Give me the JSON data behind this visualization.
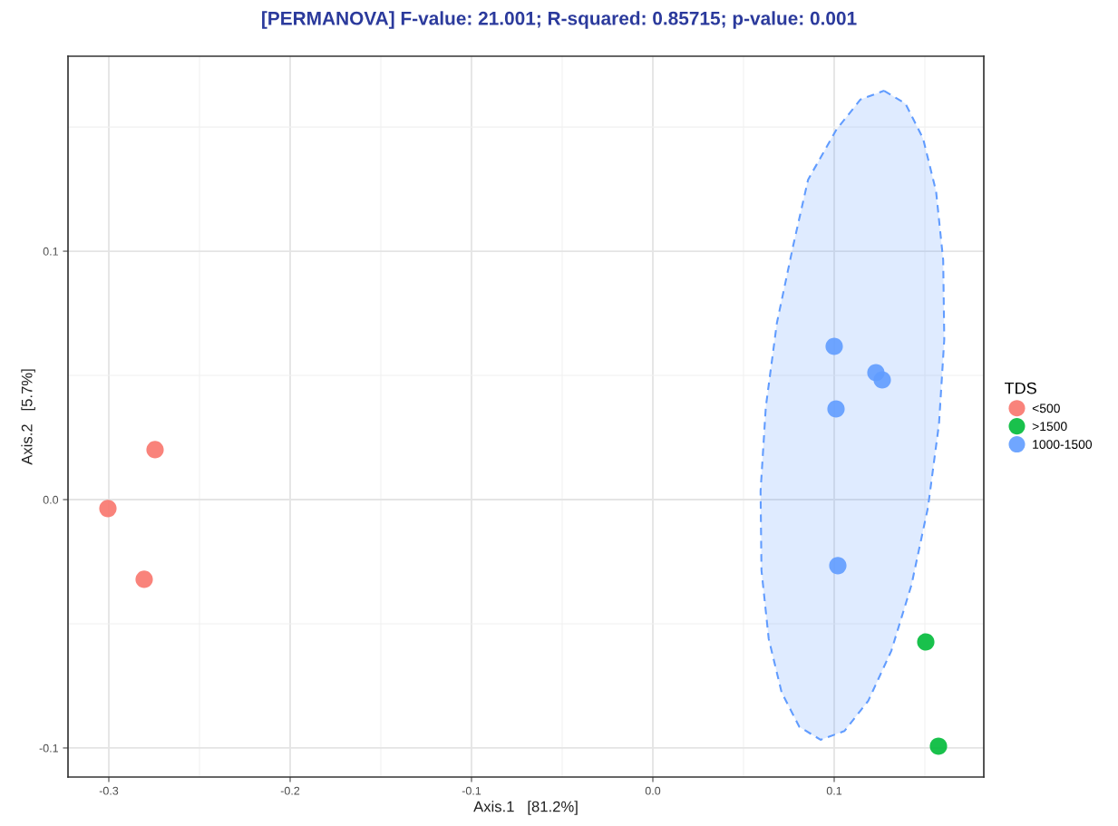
{
  "chart_data": {
    "type": "scatter",
    "title": "[PERMANOVA] F-value: 21.001; R-squared: 0.85715; p-value: 0.001",
    "xlabel": "Axis.1   [81.2%]",
    "ylabel": "Axis.2   [5.7%]",
    "legend_title": "TDS",
    "xlim": [
      -0.3225,
      0.1825
    ],
    "ylim": [
      -0.1117,
      0.1785
    ],
    "xticks": [
      -0.3,
      -0.2,
      -0.1,
      {
        "value": 0,
        "label": "0.0"
      },
      0.1
    ],
    "yticks": [
      -0.1,
      {
        "value": 0,
        "label": "0.0"
      },
      0.1
    ],
    "grid": true,
    "legend": "right",
    "marker": "circle",
    "series": [
      {
        "name": "<500",
        "color": "#f8766d",
        "x": [
          -0.3005,
          -0.2745,
          -0.2805
        ],
        "values": [
          -0.0036,
          0.0201,
          -0.0321
        ]
      },
      {
        "name": ">1500",
        "color": "#00ba38",
        "x": [
          0.1505,
          0.1575
        ],
        "values": [
          -0.0573,
          -0.0993
        ]
      },
      {
        "name": "1000-1500",
        "color": "#619cff",
        "x": [
          0.1,
          0.101,
          0.123,
          0.1265,
          0.102
        ],
        "values": [
          0.0617,
          0.0365,
          0.0511,
          0.0482,
          -0.0266
        ]
      },
      {
        "type": "area",
        "color": "#619cff",
        "line_style": "dashed",
        "marker": "none",
        "x": [
          0.1275,
          0.1393,
          0.149,
          0.1562,
          0.1601,
          0.1607,
          0.1578,
          0.1517,
          0.1426,
          0.1315,
          0.1188,
          0.1056,
          0.0925,
          0.0808,
          0.071,
          0.0639,
          0.0599,
          0.0594,
          0.0623,
          0.0684,
          0.0774,
          0.0856,
          0.1012,
          0.1145,
          0.1275
        ],
        "values": [
          0.1646,
          0.1594,
          0.1454,
          0.124,
          0.0964,
          0.0645,
          0.0305,
          -0.0032,
          -0.0344,
          -0.0609,
          -0.081,
          -0.0932,
          -0.0967,
          -0.0915,
          -0.0776,
          -0.0561,
          -0.0285,
          0.0034,
          0.0373,
          0.0711,
          0.1023,
          0.1288,
          0.1489,
          0.1611,
          0.1646
        ]
      }
    ]
  }
}
